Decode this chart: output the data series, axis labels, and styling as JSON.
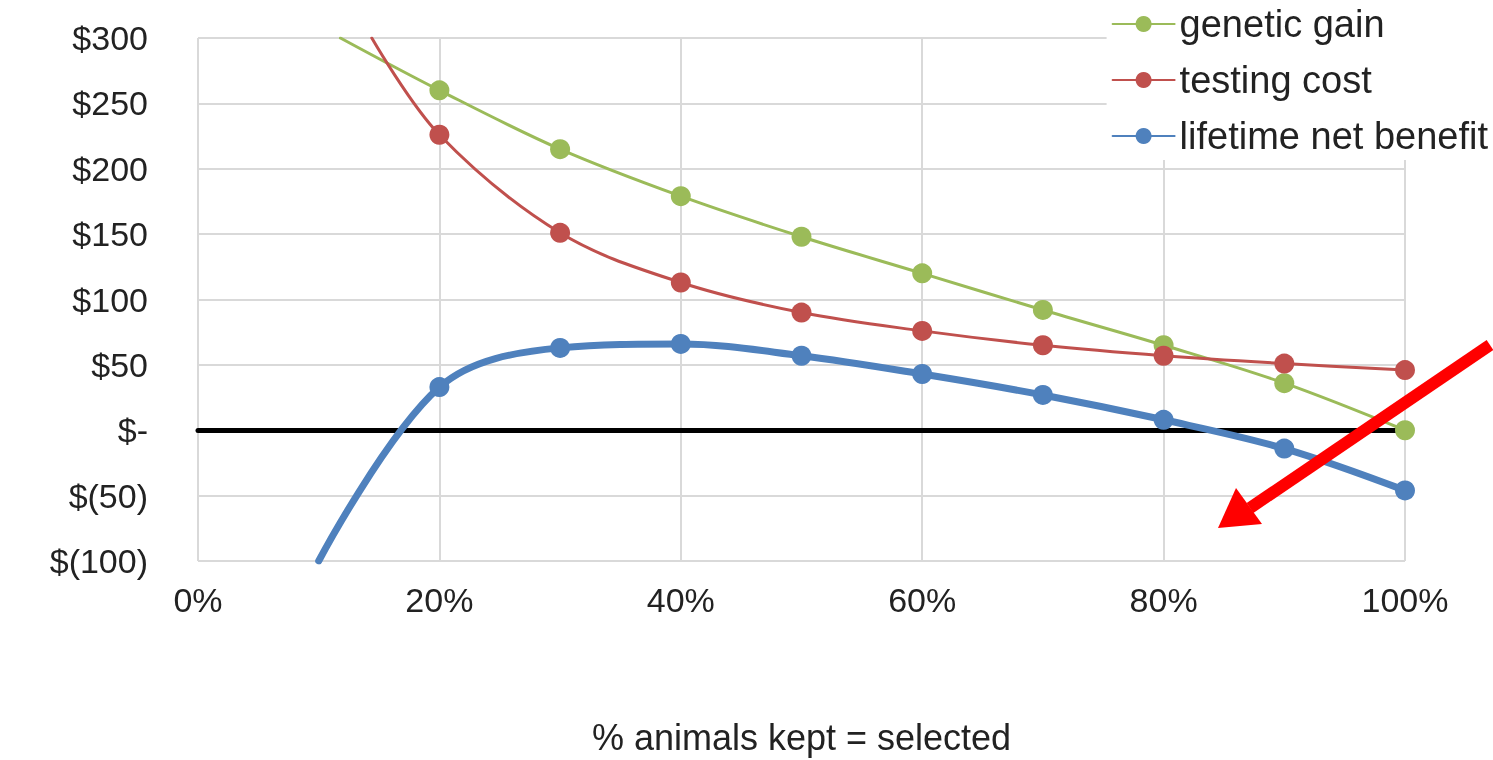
{
  "chart_data": {
    "type": "line",
    "xlabel": "% animals kept = selected",
    "xlim": [
      0,
      100
    ],
    "xticks": [
      {
        "value": 0,
        "label": "0%"
      },
      {
        "value": 20,
        "label": "20%"
      },
      {
        "value": 40,
        "label": "40%"
      },
      {
        "value": 60,
        "label": "60%"
      },
      {
        "value": 80,
        "label": "80%"
      },
      {
        "value": 100,
        "label": "100%"
      }
    ],
    "ylim": [
      -100,
      300
    ],
    "yticks": [
      {
        "value": -100,
        "label": "$(100)"
      },
      {
        "value": -50,
        "label": "$(50)"
      },
      {
        "value": 0,
        "label": "$-"
      },
      {
        "value": 50,
        "label": "$50"
      },
      {
        "value": 100,
        "label": "$100"
      },
      {
        "value": 150,
        "label": "$150"
      },
      {
        "value": 200,
        "label": "$200"
      },
      {
        "value": 250,
        "label": "$250"
      },
      {
        "value": 300,
        "label": "$300"
      }
    ],
    "grid": true,
    "legend": "top right",
    "marker": "circle",
    "line_style": "solid",
    "series": [
      {
        "name": "genetic gain",
        "color": "#9bbb59",
        "x": [
          11.8,
          20,
          30,
          40,
          50,
          60,
          70,
          80,
          90,
          100
        ],
        "values": [
          300,
          260,
          215,
          179,
          148,
          120,
          92,
          65,
          36,
          0
        ]
      },
      {
        "name": "testing cost",
        "color": "#c0504d",
        "x": [
          14.4,
          20,
          30,
          40,
          50,
          60,
          70,
          80,
          90,
          100
        ],
        "values": [
          300,
          226,
          151,
          113,
          90,
          76,
          65,
          57,
          51,
          46
        ]
      },
      {
        "name": "lifetime net benefit",
        "color": "#4f81bd",
        "x": [
          10,
          20,
          30,
          40,
          50,
          60,
          70,
          80,
          90,
          100
        ],
        "values": [
          -100,
          33,
          63,
          66,
          57,
          43,
          27,
          8,
          -14,
          -46
        ]
      }
    ]
  }
}
